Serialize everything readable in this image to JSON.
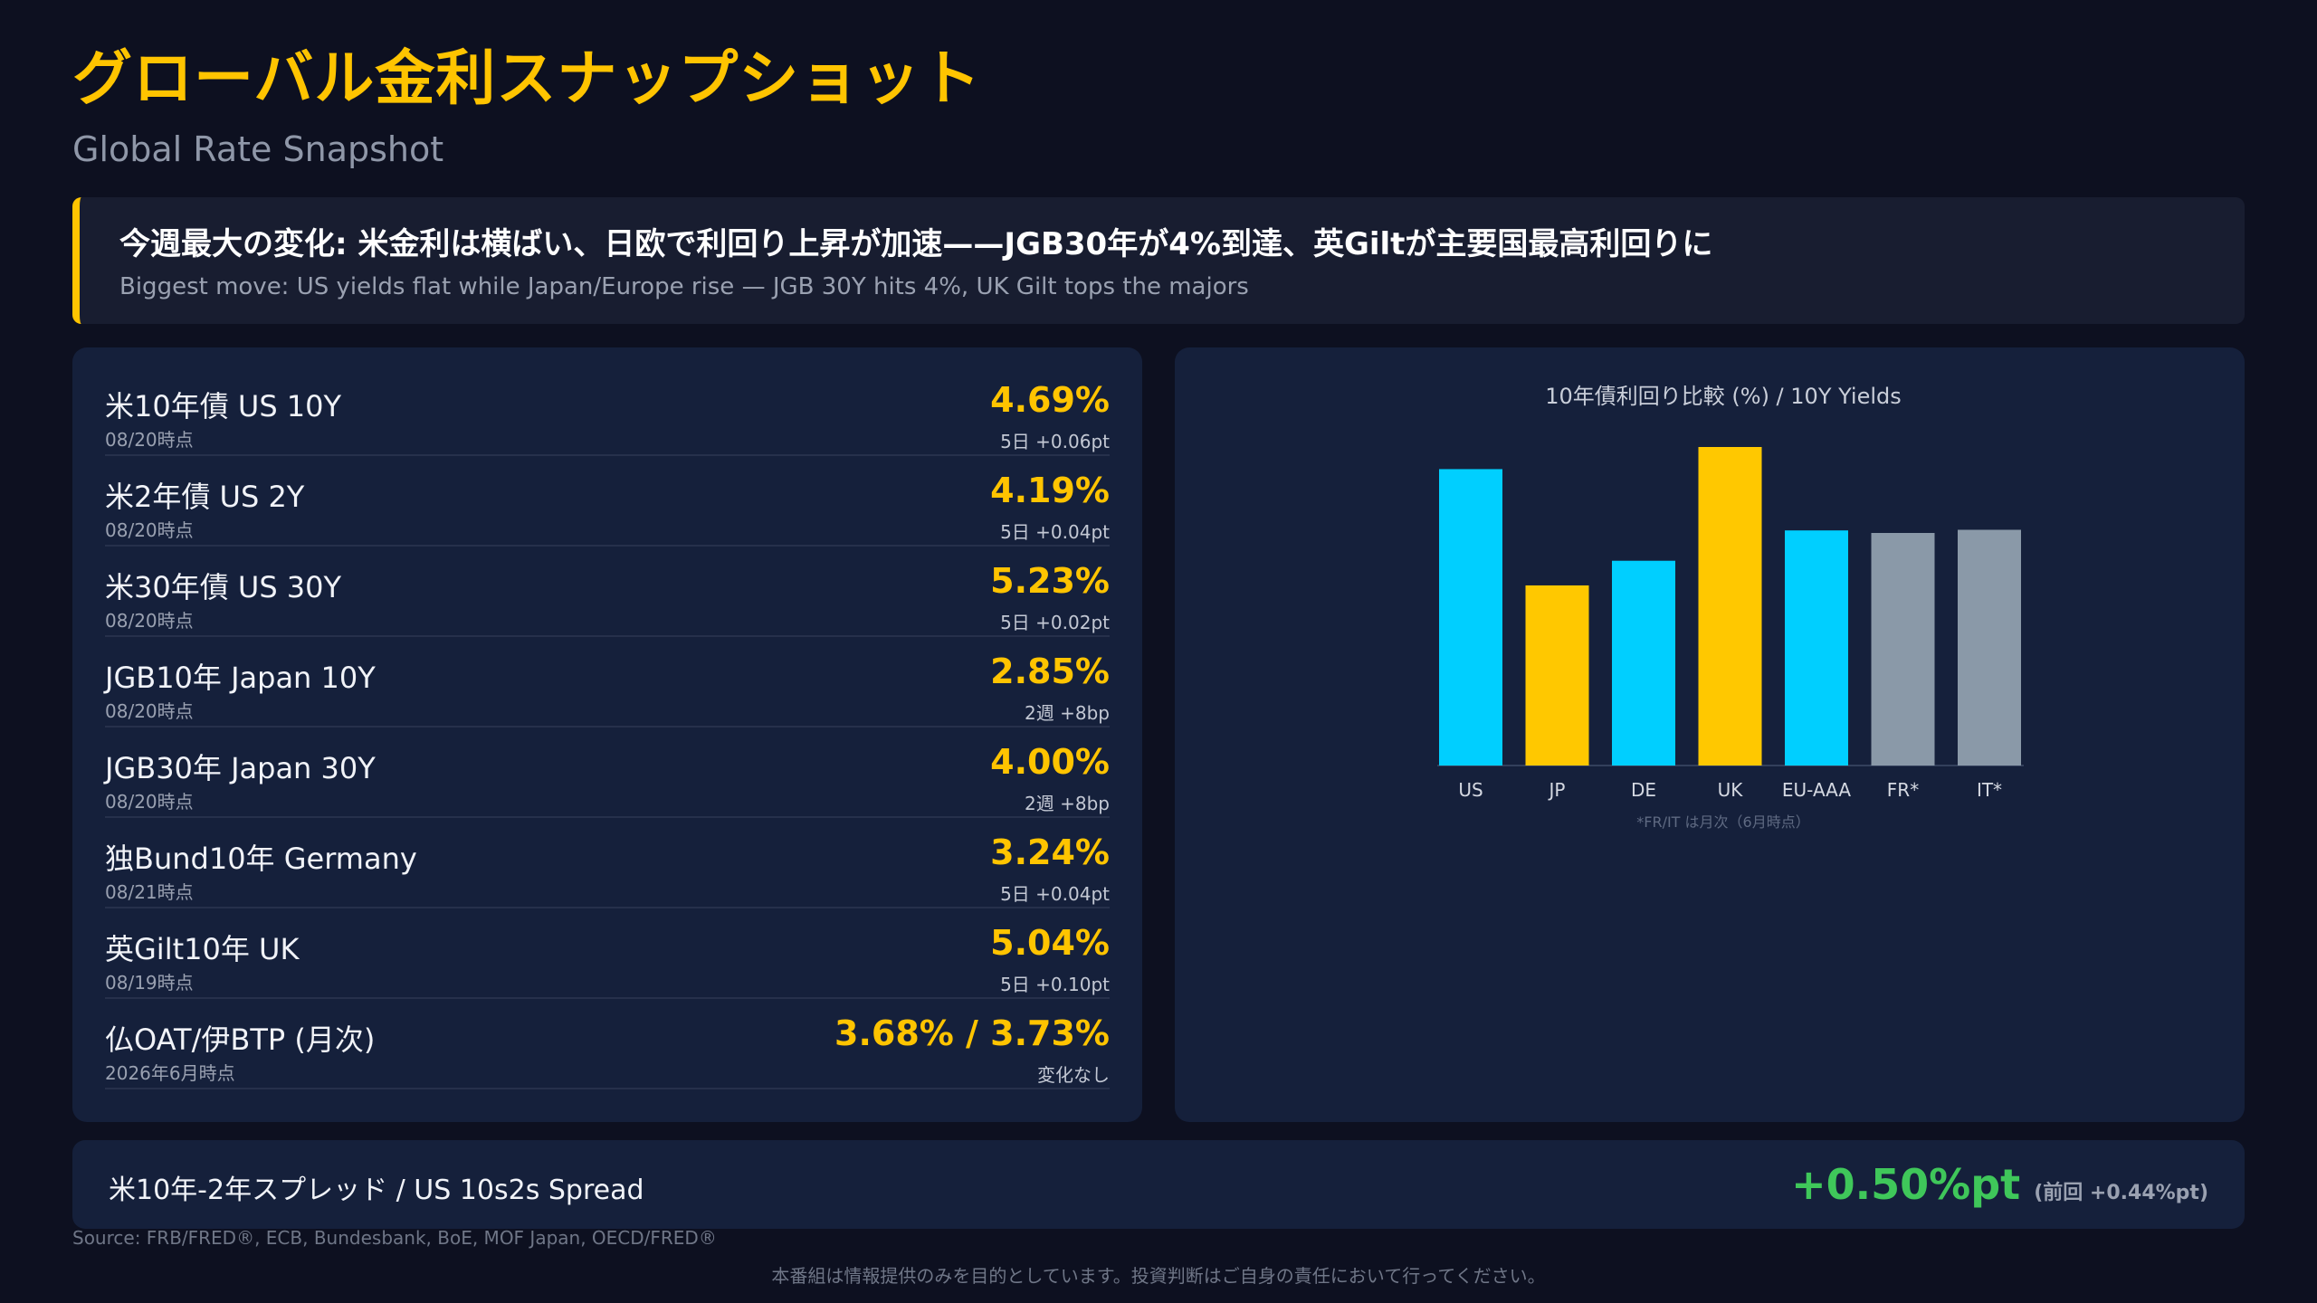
{
  "header": {
    "title": "グローバル金利スナップショット",
    "subtitle": "Global Rate Snapshot"
  },
  "headline": {
    "jp": "今週最大の変化: 米金利は横ばい、日欧で利回り上昇が加速——JGB30年が4%到達、英Giltが主要国最高利回りに",
    "en": "Biggest move: US yields flat while Japan/Europe rise — JGB 30Y hits 4%, UK Gilt tops the majors"
  },
  "rates": [
    {
      "label": "米10年債 US 10Y",
      "date": "08/20時点",
      "value": "4.69%",
      "change": "5日 +0.06pt"
    },
    {
      "label": "米2年債 US 2Y",
      "date": "08/20時点",
      "value": "4.19%",
      "change": "5日 +0.04pt"
    },
    {
      "label": "米30年債 US 30Y",
      "date": "08/20時点",
      "value": "5.23%",
      "change": "5日 +0.02pt"
    },
    {
      "label": "JGB10年 Japan 10Y",
      "date": "08/20時点",
      "value": "2.85%",
      "change": "2週 +8bp"
    },
    {
      "label": "JGB30年 Japan 30Y",
      "date": "08/20時点",
      "value": "4.00%",
      "change": "2週 +8bp"
    },
    {
      "label": "独Bund10年 Germany",
      "date": "08/21時点",
      "value": "3.24%",
      "change": "5日 +0.04pt"
    },
    {
      "label": "英Gilt10年 UK",
      "date": "08/19時点",
      "value": "5.04%",
      "change": "5日 +0.10pt"
    },
    {
      "label": "仏OAT/伊BTP (月次)",
      "date": "2026年6月時点",
      "value": "3.68% / 3.73%",
      "change": "変化なし"
    }
  ],
  "spread": {
    "label": "米10年-2年スプレッド / US 10s2s Spread",
    "value": "+0.50%pt",
    "previous": "(前回 +0.44%pt)"
  },
  "footer": {
    "source": "Source: FRB/FRED®, ECB, Bundesbank, BoE, MOF Japan, OECD/FRED®",
    "disclaimer": "本番組は情報提供のみを目的としています。投資判断はご自身の責任において行ってください。"
  },
  "chart_data": {
    "type": "bar",
    "title": "10年債利回り比較 (%) / 10Y Yields",
    "categories": [
      "US",
      "JP",
      "DE",
      "UK",
      "EU-AAA",
      "FR*",
      "IT*"
    ],
    "values": [
      4.69,
      2.85,
      3.24,
      5.04,
      3.72,
      3.68,
      3.73
    ],
    "colors": [
      "#00cfff",
      "#ffc800",
      "#00cfff",
      "#ffc800",
      "#00cfff",
      "#8a99a8",
      "#8a99a8"
    ],
    "note": "*FR/IT は月次（6月時点）",
    "ylim": [
      0,
      5.04
    ],
    "grid": false,
    "legend": "none"
  }
}
